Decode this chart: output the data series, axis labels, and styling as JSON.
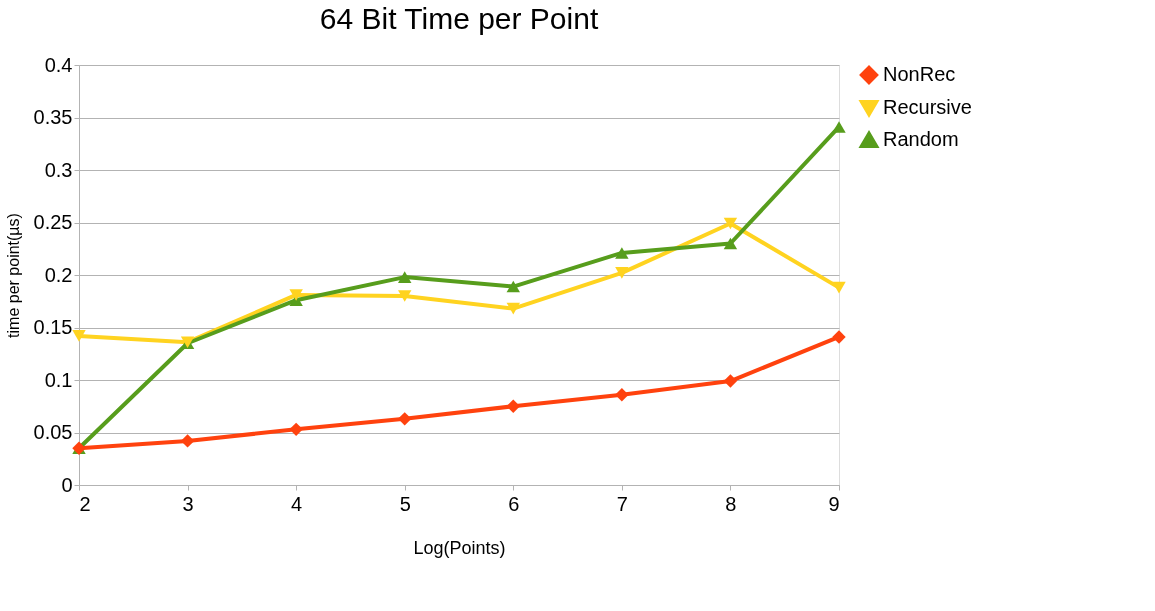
{
  "chart_data": {
    "type": "line",
    "title": "64 Bit Time per Point",
    "xlabel": "Log(Points)",
    "ylabel": "time per point(µs)",
    "x": [
      2,
      3,
      4,
      5,
      6,
      7,
      8,
      9
    ],
    "series": [
      {
        "name": "NonRec",
        "color": "#ff420e",
        "marker": "diamond",
        "values": [
          0.035,
          0.042,
          0.053,
          0.063,
          0.075,
          0.086,
          0.099,
          0.141
        ]
      },
      {
        "name": "Recursive",
        "color": "#ffd320",
        "marker": "triangle-down",
        "values": [
          0.142,
          0.136,
          0.181,
          0.18,
          0.168,
          0.202,
          0.249,
          0.188
        ]
      },
      {
        "name": "Random",
        "color": "#579d1c",
        "marker": "triangle",
        "values": [
          0.035,
          0.135,
          0.176,
          0.198,
          0.189,
          0.221,
          0.23,
          0.341
        ]
      }
    ],
    "xlim": [
      2,
      9
    ],
    "xticks": [
      2,
      3,
      4,
      5,
      6,
      7,
      8,
      9
    ],
    "ylim": [
      0,
      0.4
    ],
    "yticks": [
      0,
      0.05,
      0.1,
      0.15,
      0.2,
      0.25,
      0.3,
      0.35,
      0.4
    ],
    "grid": "y",
    "legend": "right",
    "line_style": "solid"
  }
}
